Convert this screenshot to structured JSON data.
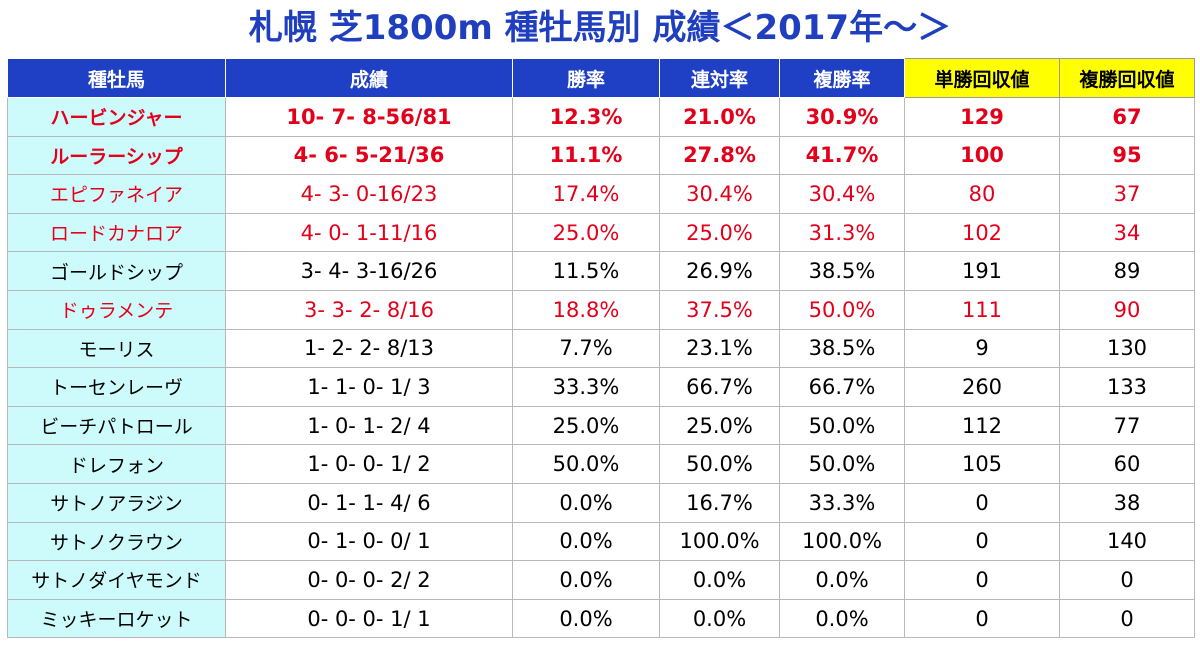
{
  "title": "札幌 芝1800m 種牡馬別 成績＜2017年～＞",
  "chart_data": {
    "type": "table",
    "columns": [
      "種牡馬",
      "成績",
      "勝率",
      "連対率",
      "複勝率",
      "単勝回収値",
      "複勝回収値"
    ],
    "rows": [
      {
        "sire": "ハービンジャー",
        "record": "10- 7- 8-56/81",
        "win_rate": "12.3%",
        "quinella_rate": "21.0%",
        "show_rate": "30.9%",
        "win_return": "129",
        "show_return": "67",
        "highlight": "red",
        "bold": true
      },
      {
        "sire": "ルーラーシップ",
        "record": "4- 6- 5-21/36",
        "win_rate": "11.1%",
        "quinella_rate": "27.8%",
        "show_rate": "41.7%",
        "win_return": "100",
        "show_return": "95",
        "highlight": "red",
        "bold": true
      },
      {
        "sire": "エピファネイア",
        "record": "4- 3- 0-16/23",
        "win_rate": "17.4%",
        "quinella_rate": "30.4%",
        "show_rate": "30.4%",
        "win_return": "80",
        "show_return": "37",
        "highlight": "red",
        "bold": false
      },
      {
        "sire": "ロードカナロア",
        "record": "4- 0- 1-11/16",
        "win_rate": "25.0%",
        "quinella_rate": "25.0%",
        "show_rate": "31.3%",
        "win_return": "102",
        "show_return": "34",
        "highlight": "red",
        "bold": false
      },
      {
        "sire": "ゴールドシップ",
        "record": "3- 4- 3-16/26",
        "win_rate": "11.5%",
        "quinella_rate": "26.9%",
        "show_rate": "38.5%",
        "win_return": "191",
        "show_return": "89",
        "highlight": "none",
        "bold": false
      },
      {
        "sire": "ドゥラメンテ",
        "record": "3- 3- 2- 8/16",
        "win_rate": "18.8%",
        "quinella_rate": "37.5%",
        "show_rate": "50.0%",
        "win_return": "111",
        "show_return": "90",
        "highlight": "red",
        "bold": false
      },
      {
        "sire": "モーリス",
        "record": "1- 2- 2- 8/13",
        "win_rate": "7.7%",
        "quinella_rate": "23.1%",
        "show_rate": "38.5%",
        "win_return": "9",
        "show_return": "130",
        "highlight": "none",
        "bold": false
      },
      {
        "sire": "トーセンレーヴ",
        "record": "1- 1- 0- 1/ 3",
        "win_rate": "33.3%",
        "quinella_rate": "66.7%",
        "show_rate": "66.7%",
        "win_return": "260",
        "show_return": "133",
        "highlight": "none",
        "bold": false
      },
      {
        "sire": "ビーチパトロール",
        "record": "1- 0- 1- 2/ 4",
        "win_rate": "25.0%",
        "quinella_rate": "25.0%",
        "show_rate": "50.0%",
        "win_return": "112",
        "show_return": "77",
        "highlight": "none",
        "bold": false
      },
      {
        "sire": "ドレフォン",
        "record": "1- 0- 0- 1/ 2",
        "win_rate": "50.0%",
        "quinella_rate": "50.0%",
        "show_rate": "50.0%",
        "win_return": "105",
        "show_return": "60",
        "highlight": "none",
        "bold": false
      },
      {
        "sire": "サトノアラジン",
        "record": "0- 1- 1- 4/ 6",
        "win_rate": "0.0%",
        "quinella_rate": "16.7%",
        "show_rate": "33.3%",
        "win_return": "0",
        "show_return": "38",
        "highlight": "none",
        "bold": false
      },
      {
        "sire": "サトノクラウン",
        "record": "0- 1- 0- 0/ 1",
        "win_rate": "0.0%",
        "quinella_rate": "100.0%",
        "show_rate": "100.0%",
        "win_return": "0",
        "show_return": "140",
        "highlight": "none",
        "bold": false
      },
      {
        "sire": "サトノダイヤモンド",
        "record": "0- 0- 0- 2/ 2",
        "win_rate": "0.0%",
        "quinella_rate": "0.0%",
        "show_rate": "0.0%",
        "win_return": "0",
        "show_return": "0",
        "highlight": "none",
        "bold": false
      },
      {
        "sire": "ミッキーロケット",
        "record": "0- 0- 0- 1/ 1",
        "win_rate": "0.0%",
        "quinella_rate": "0.0%",
        "show_rate": "0.0%",
        "win_return": "0",
        "show_return": "0",
        "highlight": "none",
        "bold": false
      }
    ]
  },
  "colors": {
    "title": "#1f3fbf",
    "header_bg": "#1f3fc4",
    "header_highlight_bg": "#ffff00",
    "name_col_bg": "#cdfbfb",
    "highlight_text": "#e3001b"
  }
}
